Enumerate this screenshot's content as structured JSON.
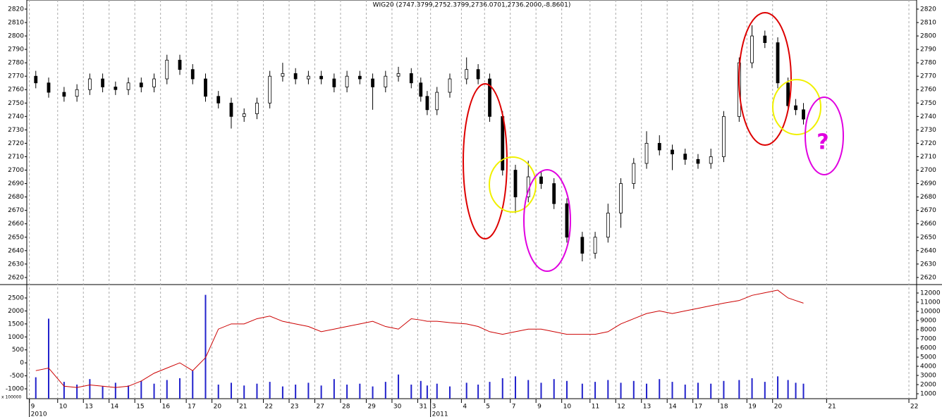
{
  "chart_data": [
    {
      "type": "candlestick",
      "title": "WIG20 (2747.3799,2752.3799,2736.0701,2736.2000,-8.8601)",
      "x": [
        0.25,
        0.75,
        1.35,
        1.85,
        2.35,
        2.85,
        3.35,
        3.85,
        4.35,
        4.85,
        5.35,
        5.85,
        6.35,
        6.85,
        7.35,
        7.85,
        8.35,
        8.85,
        9.35,
        9.85,
        10.35,
        10.85,
        11.35,
        11.85,
        12.35,
        12.85,
        13.35,
        13.85,
        14.35,
        14.85,
        15.22,
        15.47,
        15.85,
        16.35,
        17.0,
        17.45,
        17.9,
        18.4,
        18.9,
        19.4,
        19.9,
        20.4,
        20.9,
        21.5,
        22.0,
        22.5,
        23.0,
        23.5,
        24.0,
        24.5,
        25.0,
        25.5,
        26.0,
        26.5,
        27.0,
        27.6,
        28.1,
        28.6,
        29.1,
        29.5,
        29.8,
        30.1
      ],
      "open": [
        2770,
        2765,
        2758,
        2755,
        2760,
        2768,
        2762,
        2760,
        2765,
        2762,
        2768,
        2782,
        2775,
        2768,
        2755,
        2750,
        2740,
        2742,
        2750,
        2770,
        2772,
        2768,
        2770,
        2768,
        2762,
        2770,
        2768,
        2762,
        2770,
        2772,
        2765,
        2755,
        2745,
        2758,
        2768,
        2775,
        2768,
        2740,
        2700,
        2680,
        2695,
        2690,
        2675,
        2650,
        2638,
        2650,
        2668,
        2690,
        2705,
        2720,
        2715,
        2712,
        2708,
        2705,
        2710,
        2740,
        2780,
        2800,
        2795,
        2765,
        2748,
        2745
      ],
      "high": [
        2774,
        2769,
        2762,
        2764,
        2772,
        2772,
        2766,
        2769,
        2769,
        2772,
        2786,
        2786,
        2779,
        2772,
        2759,
        2754,
        2746,
        2754,
        2774,
        2780,
        2776,
        2774,
        2774,
        2772,
        2774,
        2774,
        2772,
        2774,
        2777,
        2776,
        2769,
        2759,
        2762,
        2772,
        2784,
        2779,
        2772,
        2744,
        2704,
        2707,
        2699,
        2694,
        2679,
        2654,
        2654,
        2675,
        2694,
        2709,
        2729,
        2726,
        2719,
        2716,
        2712,
        2716,
        2744,
        2784,
        2808,
        2804,
        2799,
        2769,
        2753,
        2750
      ],
      "low": [
        2761,
        2754,
        2751,
        2751,
        2756,
        2758,
        2756,
        2756,
        2758,
        2758,
        2764,
        2771,
        2764,
        2751,
        2746,
        2731,
        2736,
        2738,
        2746,
        2766,
        2764,
        2764,
        2764,
        2758,
        2758,
        2764,
        2745,
        2758,
        2766,
        2761,
        2751,
        2741,
        2741,
        2754,
        2764,
        2764,
        2736,
        2696,
        2668,
        2676,
        2686,
        2671,
        2646,
        2632,
        2634,
        2646,
        2657,
        2686,
        2701,
        2711,
        2700,
        2704,
        2701,
        2701,
        2706,
        2736,
        2776,
        2791,
        2761,
        2744,
        2741,
        2734
      ],
      "close": [
        2765,
        2758,
        2755,
        2760,
        2768,
        2762,
        2760,
        2765,
        2762,
        2768,
        2782,
        2775,
        2768,
        2755,
        2750,
        2740,
        2742,
        2750,
        2770,
        2772,
        2768,
        2770,
        2768,
        2762,
        2770,
        2768,
        2762,
        2770,
        2772,
        2765,
        2755,
        2745,
        2758,
        2768,
        2775,
        2768,
        2740,
        2700,
        2680,
        2695,
        2690,
        2675,
        2650,
        2638,
        2650,
        2668,
        2690,
        2705,
        2720,
        2715,
        2712,
        2708,
        2705,
        2710,
        2740,
        2780,
        2800,
        2795,
        2765,
        2748,
        2745,
        2738
      ],
      "up_color": "#ffffff",
      "down_color": "#000000",
      "xlim": [
        -0.1,
        34.5
      ],
      "ylim": [
        2614.7,
        2826.8
      ],
      "yticks": [
        2620,
        2630,
        2640,
        2650,
        2660,
        2670,
        2680,
        2690,
        2700,
        2710,
        2720,
        2730,
        2740,
        2750,
        2760,
        2770,
        2780,
        2790,
        2800,
        2810,
        2820
      ],
      "annotations": [
        "?"
      ]
    },
    {
      "type": "volume-line",
      "xlim": [
        -0.1,
        34.5
      ],
      "ylim": [
        -1380,
        3015
      ],
      "yticks": [
        -1000,
        -500,
        0,
        500,
        1000,
        1500,
        2000,
        2500
      ],
      "y2lim": [
        461.5,
        12923
      ],
      "y2ticks": [
        1000,
        2000,
        3000,
        4000,
        5000,
        6000,
        7000,
        8000,
        9000,
        10000,
        11000,
        12000
      ],
      "multiplier_label": "x 100000",
      "series": [
        {
          "color": "#2222cc",
          "axis": "y2",
          "values": [
            2800,
            9200,
            2300,
            2000,
            2600,
            1800,
            2200,
            1900,
            2400,
            2100,
            2500,
            2700,
            3500,
            11800,
            2000,
            2200,
            1900,
            2100,
            2300,
            1800,
            2000,
            2200,
            1900,
            2600,
            2000,
            2100,
            1800,
            2300,
            3100,
            2000,
            2400,
            1900,
            2100,
            1800,
            2200,
            2000,
            2300,
            2700,
            2900,
            2500,
            2200,
            2600,
            2400,
            2100,
            2300,
            2500,
            2200,
            2400,
            2100,
            2600,
            2300,
            2000,
            2200,
            2100,
            2400,
            2500,
            2700,
            2300,
            2900,
            2500,
            2200,
            2100
          ]
        },
        {
          "color": "#cc0000",
          "axis": "y",
          "values": [
            -300,
            -200,
            -900,
            -950,
            -850,
            -900,
            -950,
            -900,
            -700,
            -400,
            -200,
            0,
            -300,
            200,
            1300,
            1500,
            1500,
            1700,
            1800,
            1600,
            1500,
            1400,
            1200,
            1300,
            1400,
            1500,
            1600,
            1400,
            1300,
            1700,
            1650,
            1600,
            1600,
            1550,
            1500,
            1400,
            1200,
            1100,
            1200,
            1300,
            1300,
            1200,
            1100,
            1100,
            1100,
            1200,
            1500,
            1700,
            1900,
            2000,
            1900,
            2000,
            2100,
            2200,
            2300,
            2400,
            2600,
            2700,
            2800,
            2500,
            2400,
            2300
          ]
        }
      ],
      "xticks": [
        {
          "value": 0,
          "label": "9"
        },
        {
          "value": 1.1,
          "label": "10"
        },
        {
          "value": 2.1,
          "label": "13"
        },
        {
          "value": 3.1,
          "label": "14"
        },
        {
          "value": 4.1,
          "label": "15"
        },
        {
          "value": 5.1,
          "label": "16"
        },
        {
          "value": 6.1,
          "label": "17"
        },
        {
          "value": 7.1,
          "label": "20"
        },
        {
          "value": 8.1,
          "label": "21"
        },
        {
          "value": 9.1,
          "label": "22"
        },
        {
          "value": 10.1,
          "label": "23"
        },
        {
          "value": 11.1,
          "label": "27"
        },
        {
          "value": 12.1,
          "label": "28"
        },
        {
          "value": 13.1,
          "label": "29"
        },
        {
          "value": 14.1,
          "label": "30"
        },
        {
          "value": 15.1,
          "label": "31"
        },
        {
          "value": 15.6,
          "label": "3"
        },
        {
          "value": 16.8,
          "label": "4"
        },
        {
          "value": 17.7,
          "label": "5"
        },
        {
          "value": 18.7,
          "label": "7"
        },
        {
          "value": 19.7,
          "label": "9"
        },
        {
          "value": 20.7,
          "label": "10"
        },
        {
          "value": 21.8,
          "label": "11"
        },
        {
          "value": 22.8,
          "label": "12"
        },
        {
          "value": 23.8,
          "label": "13"
        },
        {
          "value": 24.8,
          "label": "14"
        },
        {
          "value": 25.8,
          "label": "17"
        },
        {
          "value": 26.8,
          "label": "18"
        },
        {
          "value": 27.9,
          "label": "19"
        },
        {
          "value": 28.9,
          "label": "20"
        },
        {
          "value": 31.0,
          "label": "21"
        },
        {
          "value": 34.2,
          "label": "22"
        }
      ],
      "year_labels": [
        {
          "value": 0,
          "label": "2010"
        },
        {
          "value": 15.6,
          "label": "2011"
        }
      ]
    }
  ]
}
